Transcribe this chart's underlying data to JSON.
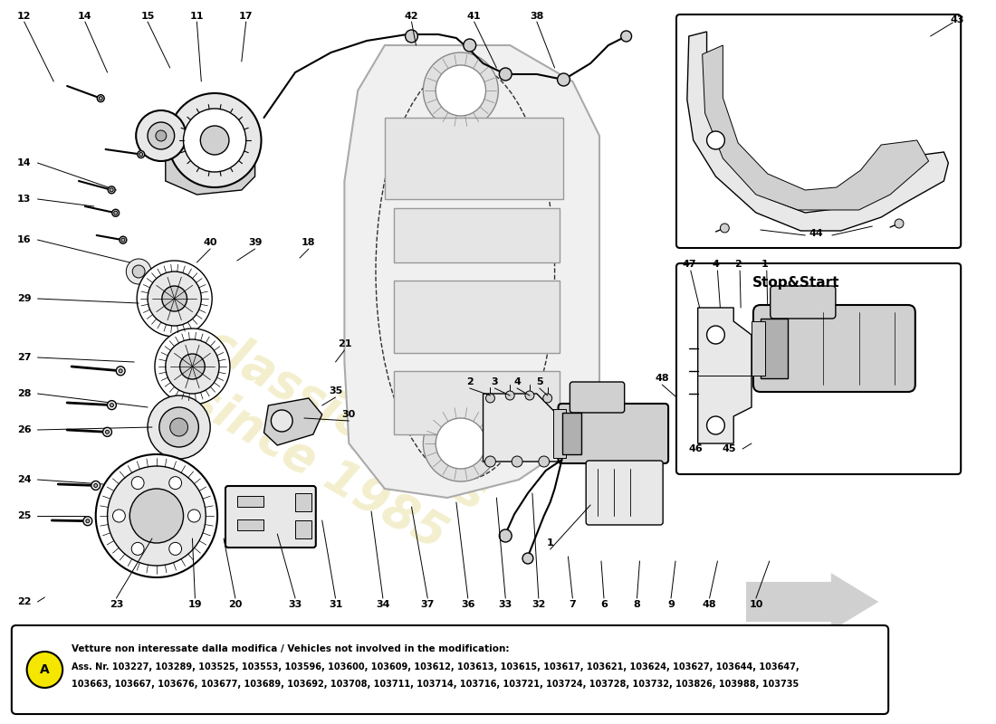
{
  "bg_color": "#ffffff",
  "watermark_text": "since 1985",
  "watermark_color": "#e8d830",
  "watermark_alpha": 0.3,
  "stop_start_label": "Stop&Start",
  "note_title": "Vetture non interessate dalla modifica / Vehicles not involved in the modification:",
  "note_line1": "Ass. Nr. 103227, 103289, 103525, 103553, 103596, 103600, 103609, 103612, 103613, 103615, 103617, 103621, 103624, 103627, 103644, 103647,",
  "note_line2": "103663, 103667, 103676, 103677, 103689, 103692, 103708, 103711, 103714, 103716, 103721, 103724, 103728, 103732, 103826, 103988, 103735",
  "circle_A_color": "#f5e600",
  "lw_main": 1.0,
  "lw_thin": 0.7,
  "lw_thick": 1.5,
  "part_color": "#333333",
  "fill_light": "#e8e8e8",
  "fill_mid": "#d0d0d0",
  "fill_dark": "#b0b0b0"
}
